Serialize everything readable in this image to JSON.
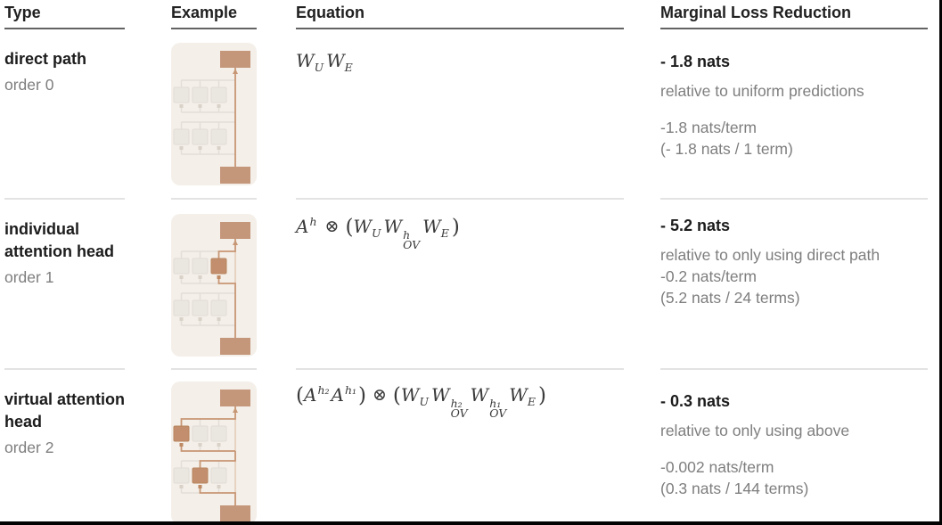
{
  "columns": {
    "type": "Type",
    "example": "Example",
    "equation": "Equation",
    "loss": "Marginal Loss Reduction"
  },
  "rows": [
    {
      "type": "direct path",
      "order": "order 0",
      "example_diagram": "direct path from embedding straight to unembedding",
      "equation": [
        {
          "k": "var",
          "t": "W"
        },
        {
          "k": "sub",
          "t": "U"
        },
        {
          "k": "var",
          "t": "W"
        },
        {
          "k": "sub",
          "t": "E"
        }
      ],
      "loss": {
        "headline": "- 1.8 nats",
        "relative": "relative to uniform predictions",
        "per_term": "-1.8 nats/term",
        "detail": "(- 1.8 nats / 1 term)"
      }
    },
    {
      "type": "individual attention head",
      "order": "order 1",
      "example_diagram": "path through one attention head in upper layer",
      "equation": [
        {
          "k": "var",
          "t": "A"
        },
        {
          "k": "sup",
          "t": "h"
        },
        {
          "k": "op",
          "t": "⊗"
        },
        {
          "k": "par",
          "t": "("
        },
        {
          "k": "var",
          "t": "W"
        },
        {
          "k": "sub",
          "t": "U"
        },
        {
          "k": "var",
          "t": "W"
        },
        {
          "k": "supsub",
          "t": "h|OV"
        },
        {
          "k": "var",
          "t": "W"
        },
        {
          "k": "sub",
          "t": "E"
        },
        {
          "k": "par",
          "t": ")"
        }
      ],
      "loss": {
        "headline": "- 5.2 nats",
        "relative": "relative to only using direct path",
        "per_term": "-0.2 nats/term",
        "detail": "(5.2 nats / 24 terms)"
      }
    },
    {
      "type": "virtual attention head",
      "order": "order 2",
      "example_diagram": "path composing two attention heads across layers",
      "equation": [
        {
          "k": "par",
          "t": "("
        },
        {
          "k": "var",
          "t": "A"
        },
        {
          "k": "sup",
          "t": "h₂"
        },
        {
          "k": "var",
          "t": "A"
        },
        {
          "k": "sup",
          "t": "h₁"
        },
        {
          "k": "par",
          "t": ")"
        },
        {
          "k": "op",
          "t": "⊗"
        },
        {
          "k": "par",
          "t": "("
        },
        {
          "k": "var",
          "t": "W"
        },
        {
          "k": "sub",
          "t": "U"
        },
        {
          "k": "var",
          "t": "W"
        },
        {
          "k": "supsub",
          "t": "h₂|OV"
        },
        {
          "k": "var",
          "t": "W"
        },
        {
          "k": "supsub",
          "t": "h₁|OV"
        },
        {
          "k": "var",
          "t": "W"
        },
        {
          "k": "sub",
          "t": "E"
        },
        {
          "k": "par",
          "t": ")"
        }
      ],
      "loss": {
        "headline": "- 0.3 nats",
        "relative": "relative to only using above",
        "per_term": "-0.002 nats/term",
        "detail": "(0.3 nats / 144 terms)"
      }
    }
  ],
  "colors": {
    "accent": "#c4967a",
    "accent_line": "#c79674",
    "accent_square": "#c28e6d",
    "accent_pale": "#e7cfbd",
    "card_bg": "#f4efe9",
    "gray_line": "#e3ded7",
    "gray_square": "#eae7e1",
    "gray_tap": "#d8d2c9",
    "text_dark": "#1c1c1c",
    "text_gray": "#7e7e7e",
    "separator": "#e3e3e3",
    "header_underline": "#636363"
  }
}
